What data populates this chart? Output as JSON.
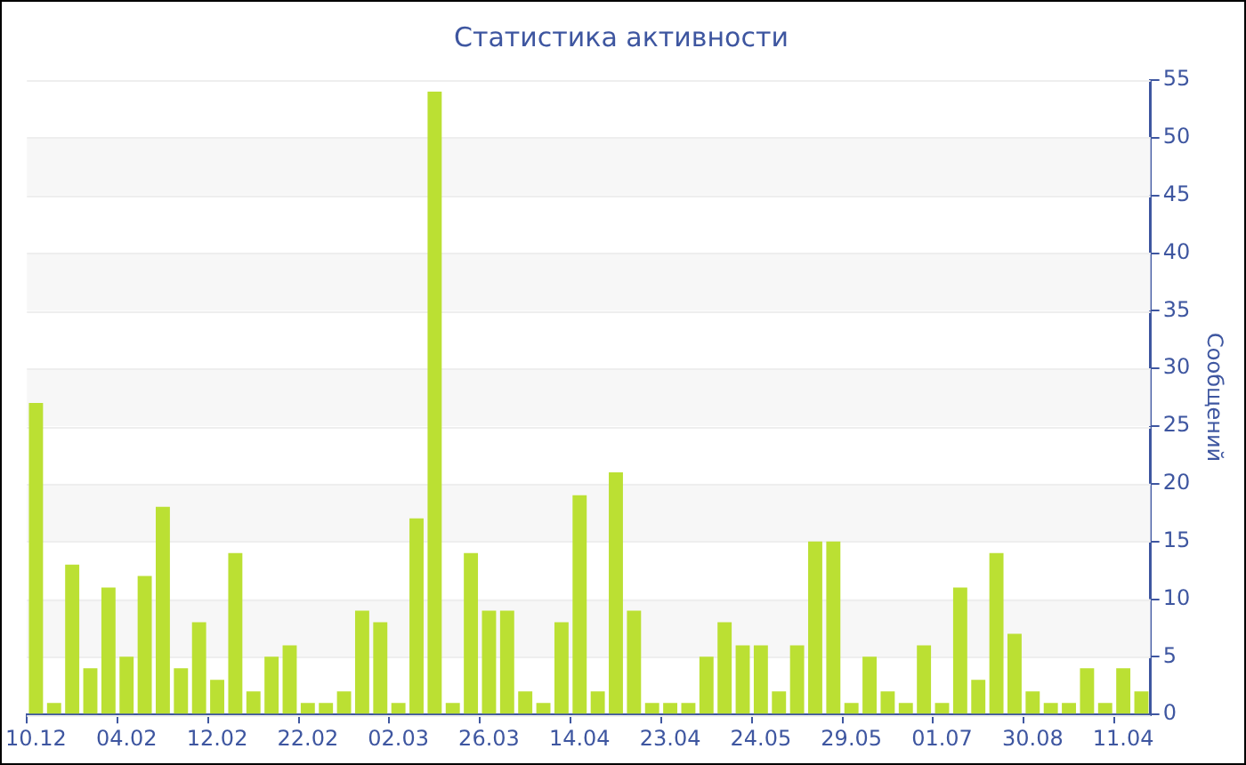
{
  "chart_data": {
    "type": "bar",
    "title": "Статистика активности",
    "ylabel": "Сообщений",
    "categories": [
      "10.12",
      null,
      null,
      null,
      null,
      "04.02",
      null,
      null,
      null,
      null,
      "12.02",
      null,
      null,
      null,
      null,
      "22.02",
      null,
      null,
      null,
      null,
      "02.03",
      null,
      null,
      null,
      null,
      "26.03",
      null,
      null,
      null,
      null,
      "14.04",
      null,
      null,
      null,
      null,
      "23.04",
      null,
      null,
      null,
      null,
      "24.05",
      null,
      null,
      null,
      null,
      "29.05",
      null,
      null,
      null,
      null,
      "01.07",
      null,
      null,
      null,
      null,
      "30.08",
      null,
      null,
      null,
      null,
      "11.04",
      null
    ],
    "values": [
      27,
      1,
      13,
      4,
      11,
      5,
      12,
      18,
      4,
      8,
      3,
      14,
      2,
      5,
      6,
      1,
      1,
      2,
      9,
      8,
      1,
      17,
      54,
      1,
      14,
      9,
      9,
      2,
      1,
      8,
      19,
      2,
      21,
      9,
      1,
      1,
      1,
      5,
      8,
      6,
      6,
      2,
      6,
      15,
      15,
      1,
      5,
      2,
      1,
      6,
      1,
      11,
      3,
      14,
      7,
      2,
      1,
      1,
      4,
      1,
      4,
      2
    ],
    "color": "#bbe033",
    "ylim": [
      0,
      55
    ],
    "yticks": [
      0,
      5,
      10,
      15,
      20,
      25,
      30,
      35,
      40,
      45,
      50,
      55
    ],
    "grid": "y"
  }
}
